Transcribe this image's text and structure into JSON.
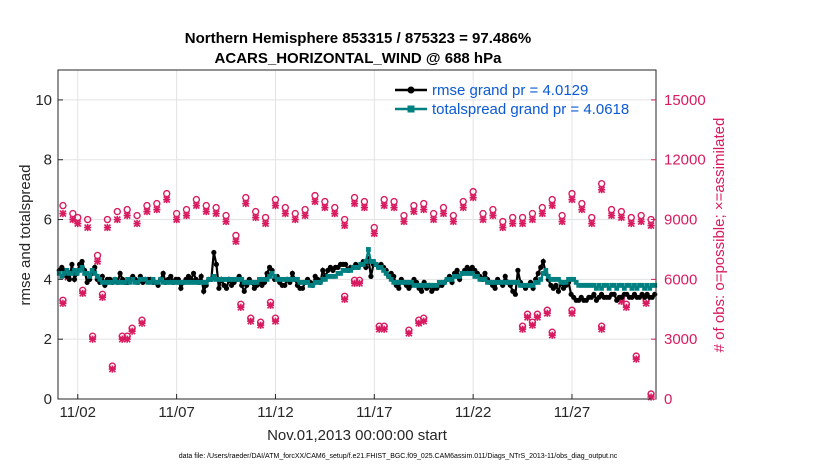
{
  "chart_data": {
    "type": "line",
    "title_line1": "Northern Hemisphere 853315 / 875323 = 97.486%",
    "title_line2": "ACARS_HORIZONTAL_WIND @ 688 hPa",
    "ylabel": "rmse and totalspread",
    "ylabel_right": "# of obs: o=possible; ×=assimilated",
    "xlabel": "Nov.01,2013 00:00:00 start",
    "footnote": "data file: /Users/raeder/DAI/ATM_forcXX/CAM6_setup/f.e21.FHIST_BGC.f09_025.CAM6assim.011/Diags_NTrS_2013-11/obs_diag_output.nc",
    "ylim": [
      0,
      11
    ],
    "ylim_right": [
      0,
      16500
    ],
    "xlim": [
      0.0,
      30.25
    ],
    "yticks": [
      0,
      2,
      4,
      6,
      8,
      10
    ],
    "ytick_labels": [
      "0",
      "2",
      "4",
      "6",
      "8",
      "10"
    ],
    "yticks_right": [
      0,
      3000,
      6000,
      9000,
      12000,
      15000
    ],
    "ytick_labels_right": [
      "0",
      "3000",
      "6000",
      "9000",
      "12000",
      "15000"
    ],
    "xticks": [
      1,
      6,
      11,
      16,
      21,
      26
    ],
    "xtick_labels": [
      "11/02",
      "11/07",
      "11/12",
      "11/17",
      "11/22",
      "11/27"
    ],
    "legend": [
      "rmse grand pr = 4.0129",
      "totalspread grand pr = 4.0618"
    ],
    "colors": {
      "rmse": "#000000",
      "spread": "#008080",
      "obs": "#d81b60",
      "legend_text": "#0b59d6"
    },
    "series": [
      {
        "name": "rmse",
        "values": [
          4.3,
          4.4,
          4.3,
          4.1,
          4.0,
          4.5,
          4.0,
          4.2,
          4.5,
          4.6,
          4.3,
          3.9,
          4.0,
          4.2,
          4.4,
          4.0,
          3.9,
          4.1,
          3.8,
          4.0,
          4.0,
          3.9,
          4.0,
          3.9,
          4.2,
          4.0,
          3.9,
          3.9,
          4.0,
          4.1,
          4.0,
          3.9,
          4.1,
          3.9,
          4.0,
          4.0,
          4.0,
          3.9,
          3.9,
          3.8,
          4.0,
          4.2,
          3.9,
          4.0,
          4.1,
          3.9,
          4.0,
          4.0,
          3.7,
          3.9,
          4.0,
          4.1,
          4.0,
          4.2,
          4.0,
          3.9,
          4.1,
          3.6,
          3.8,
          4.0,
          4.0,
          4.9,
          4.5,
          3.7,
          4.0,
          3.8,
          3.7,
          4.0,
          3.8,
          3.9,
          4.0,
          4.1,
          3.8,
          3.6,
          3.8,
          4.0,
          3.9,
          3.7,
          3.8,
          3.9,
          3.8,
          3.9,
          4.2,
          4.4,
          4.3,
          4.0,
          4.1,
          3.9,
          3.8,
          3.8,
          4.0,
          3.9,
          4.2,
          4.0,
          3.8,
          3.7,
          3.7,
          3.9,
          4.0,
          3.9,
          3.8,
          4.1,
          4.0,
          3.9,
          4.3,
          4.1,
          4.3,
          4.4,
          4.3,
          4.4,
          4.4,
          4.5,
          4.5,
          4.5,
          4.3,
          4.4,
          4.4,
          4.5,
          4.4,
          4.5,
          4.6,
          4.4,
          4.7,
          4.1,
          4.5,
          4.5,
          4.4,
          4.5,
          4.4,
          4.3,
          4.1,
          4.2,
          4.1,
          3.8,
          3.7,
          4.0,
          3.9,
          3.8,
          3.7,
          3.8,
          4.0,
          3.9,
          3.7,
          3.6,
          3.9,
          3.7,
          3.8,
          3.6,
          3.7,
          3.7,
          3.8,
          3.8,
          3.9,
          4.0,
          4.1,
          3.9,
          4.2,
          4.3,
          4.0,
          4.2,
          4.3,
          4.4,
          4.3,
          4.4,
          4.3,
          4.2,
          4.1,
          4.0,
          4.2,
          4.0,
          3.9,
          3.8,
          3.7,
          4.0,
          3.9,
          3.8,
          4.1,
          3.9,
          3.8,
          3.6,
          3.5,
          4.3,
          3.9,
          3.8,
          3.7,
          3.8,
          3.9,
          3.7,
          4.0,
          4.2,
          4.4,
          4.6,
          4.2,
          4.0,
          3.8,
          3.7,
          3.8,
          3.6,
          3.9,
          3.7,
          3.8,
          3.9,
          3.5,
          3.4,
          3.3,
          3.3,
          3.4,
          3.3,
          3.3,
          3.4,
          3.4,
          3.5,
          3.3,
          3.4,
          3.5,
          3.4,
          3.4,
          3.4,
          3.5,
          3.5,
          3.3,
          3.4,
          3.4,
          3.5,
          3.5,
          3.4,
          3.4,
          3.5,
          3.4,
          3.4,
          3.5,
          3.4,
          3.5,
          3.4,
          3.4,
          3.5
        ]
      },
      {
        "name": "totalspread",
        "values": [
          4.2,
          4.1,
          4.2,
          4.3,
          4.2,
          4.2,
          4.3,
          4.2,
          4.3,
          4.4,
          4.2,
          4.2,
          4.1,
          4.3,
          4.2,
          4.1,
          4.0,
          3.9,
          3.9,
          3.9,
          3.9,
          3.9,
          4.0,
          3.9,
          3.9,
          3.9,
          3.9,
          4.0,
          3.9,
          4.0,
          3.9,
          3.9,
          4.0,
          4.0,
          4.0,
          3.9,
          3.9,
          4.0,
          3.9,
          3.9,
          4.0,
          3.9,
          3.9,
          3.9,
          3.9,
          3.9,
          3.9,
          3.9,
          3.9,
          3.9,
          3.9,
          3.9,
          3.9,
          3.9,
          3.9,
          3.9,
          3.9,
          3.9,
          3.9,
          4.0,
          4.0,
          4.1,
          4.0,
          4.0,
          4.0,
          4.0,
          4.0,
          4.0,
          4.0,
          4.0,
          4.0,
          4.0,
          4.0,
          3.9,
          3.9,
          3.9,
          3.9,
          3.9,
          3.9,
          4.0,
          4.0,
          4.0,
          4.0,
          4.1,
          4.2,
          4.1,
          4.0,
          4.0,
          4.0,
          4.0,
          4.0,
          4.0,
          4.0,
          4.0,
          4.0,
          3.9,
          3.9,
          3.9,
          3.9,
          3.8,
          3.8,
          3.9,
          3.9,
          3.9,
          4.0,
          4.0,
          4.1,
          4.1,
          4.1,
          4.1,
          4.2,
          4.2,
          4.3,
          4.3,
          4.3,
          4.3,
          4.4,
          4.4,
          4.4,
          4.5,
          4.5,
          4.6,
          5.0,
          4.6,
          4.6,
          4.5,
          4.4,
          4.4,
          4.3,
          4.2,
          4.1,
          4.0,
          3.9,
          3.9,
          3.9,
          3.9,
          3.9,
          3.9,
          3.9,
          3.9,
          3.8,
          3.8,
          3.8,
          3.8,
          3.8,
          3.8,
          3.8,
          3.8,
          3.8,
          3.8,
          3.9,
          3.9,
          3.9,
          4.0,
          4.0,
          4.0,
          4.1,
          4.1,
          4.1,
          4.2,
          4.2,
          4.2,
          4.2,
          4.2,
          4.1,
          4.1,
          4.0,
          4.0,
          4.0,
          3.9,
          3.9,
          3.9,
          3.9,
          3.9,
          3.9,
          3.9,
          3.9,
          3.9,
          3.9,
          3.9,
          3.9,
          3.9,
          3.8,
          3.8,
          3.8,
          3.8,
          3.8,
          3.8,
          3.9,
          3.9,
          4.0,
          4.2,
          4.3,
          4.1,
          4.0,
          4.0,
          4.0,
          4.0,
          3.9,
          3.9,
          3.9,
          4.0,
          4.0,
          4.0,
          3.9,
          3.8,
          3.8,
          3.8,
          3.8,
          3.8,
          3.8,
          3.8,
          3.7,
          3.8,
          3.7,
          3.8,
          3.8,
          3.7,
          3.8,
          3.8,
          3.7,
          3.8,
          3.8,
          3.7,
          3.8,
          3.8,
          3.7,
          3.8,
          3.7,
          3.8,
          3.8,
          3.7,
          3.8,
          3.7,
          3.8,
          3.8
        ]
      }
    ],
    "obs_possible_x": [
      0.25,
      0.5,
      0.75,
      1.0,
      1.5,
      2.0,
      2.5,
      3.0,
      3.5,
      4.0,
      4.5,
      5.0,
      5.5,
      6.0,
      6.5,
      7.0,
      7.5,
      8.0,
      8.5,
      9.0,
      9.5,
      10.0,
      10.5,
      11.0,
      11.5,
      12.0,
      12.5,
      13.0,
      13.5,
      14.0,
      14.5,
      15.0,
      15.5,
      16.0,
      16.5,
      17.0,
      17.5,
      18.0,
      18.5,
      19.0,
      19.5,
      20.0,
      20.5,
      21.0,
      21.5,
      22.0,
      22.5,
      23.0,
      23.5,
      24.0,
      24.5,
      25.0,
      25.5,
      26.0,
      26.5,
      27.0,
      27.5,
      28.0,
      28.5,
      29.0,
      29.5,
      30.0
    ],
    "obs_possible_y": [
      9700,
      6300,
      9300,
      9100,
      9000,
      7200,
      9000,
      9400,
      9500,
      9200,
      9700,
      9800,
      10300,
      9300,
      9500,
      10000,
      9700,
      9600,
      9200,
      8200,
      10100,
      9400,
      9100,
      10000,
      9600,
      9300,
      9500,
      10200,
      9900,
      9600,
      9000,
      10100,
      9900,
      8600,
      10000,
      9900,
      9200,
      9700,
      9800,
      9300,
      9600,
      9200,
      9900,
      10400,
      9300,
      9500,
      8900,
      9100,
      9100,
      9300,
      9600,
      10000,
      9200,
      10300,
      9800,
      9100,
      10800,
      9500,
      9400,
      9100,
      9200,
      9000
    ],
    "obs_assim_y": [
      9300,
      6100,
      9000,
      8800,
      8600,
      6900,
      8600,
      9000,
      9200,
      8800,
      9400,
      9500,
      10000,
      9000,
      9200,
      9700,
      9400,
      9300,
      8900,
      7900,
      9800,
      9100,
      8800,
      9700,
      9300,
      9000,
      9200,
      9900,
      9600,
      9300,
      8700,
      9800,
      9600,
      8300,
      9700,
      9600,
      8900,
      9400,
      9500,
      9000,
      9300,
      8900,
      9600,
      10100,
      9000,
      9200,
      8600,
      8800,
      8800,
      9000,
      9300,
      9700,
      8900,
      10000,
      9500,
      8800,
      10500,
      9200,
      9100,
      8800,
      8900,
      8700
    ],
    "obs_low_x": [
      0.25,
      1.25,
      1.75,
      2.25,
      2.75,
      3.25,
      3.5,
      3.75,
      4.25,
      9.25,
      9.75,
      10.25,
      10.75,
      11.0,
      14.5,
      15.0,
      15.25,
      16.25,
      16.5,
      17.75,
      18.25,
      18.5,
      23.5,
      23.75,
      24.0,
      24.25,
      24.75,
      25.0,
      26.0,
      27.5,
      28.5,
      28.75,
      29.25,
      29.75,
      30.0
    ],
    "obs_low_y": [
      4800,
      5300,
      3000,
      5100,
      1500,
      3000,
      3000,
      3400,
      3800,
      4600,
      3900,
      3700,
      4700,
      3900,
      5000,
      5800,
      5800,
      3500,
      3500,
      3300,
      3800,
      3900,
      3500,
      4100,
      3700,
      4100,
      4300,
      3200,
      4300,
      3500,
      4900,
      4600,
      2000,
      4800,
      100
    ]
  }
}
